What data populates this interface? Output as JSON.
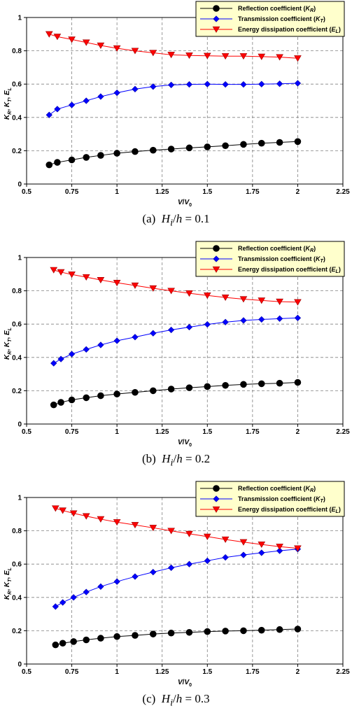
{
  "chart_data": [
    {
      "type": "line",
      "caption": {
        "label": "(a)",
        "var1": "H",
        "sub": "i",
        "var2": "h",
        "value": "0.1"
      },
      "xlabel": "V / V0",
      "ylabel": "KR, KT, EL",
      "xlim": [
        0.5,
        2.25
      ],
      "ylim": [
        0,
        1
      ],
      "xticks": [
        "0.5",
        "0.75",
        "1",
        "1.25",
        "1.5",
        "1.75",
        "2",
        "2.25"
      ],
      "yticks": [
        "0",
        "0.2",
        "0.4",
        "0.6",
        "0.8",
        "1"
      ],
      "grid": true,
      "legend_position": "top-right",
      "series": [
        {
          "name": "Reflection coefficient (KR)",
          "legend_main": "Reflection coefficient (",
          "legend_sym": "K",
          "legend_sub": "R",
          "color": "#000000",
          "marker": "circle",
          "x": [
            0.625,
            0.67,
            0.75,
            0.83,
            0.91,
            1.0,
            1.1,
            1.2,
            1.3,
            1.4,
            1.5,
            1.6,
            1.7,
            1.8,
            1.9,
            2.0
          ],
          "y": [
            0.115,
            0.13,
            0.145,
            0.16,
            0.172,
            0.185,
            0.195,
            0.203,
            0.21,
            0.217,
            0.223,
            0.23,
            0.238,
            0.245,
            0.25,
            0.255
          ]
        },
        {
          "name": "Transmission coefficient (KT)",
          "legend_main": "Transmission coefficient (",
          "legend_sym": "K",
          "legend_sub": "T",
          "color": "#0000ff",
          "marker": "diamond",
          "x": [
            0.625,
            0.67,
            0.75,
            0.83,
            0.91,
            1.0,
            1.1,
            1.2,
            1.3,
            1.4,
            1.5,
            1.6,
            1.7,
            1.8,
            1.9,
            2.0
          ],
          "y": [
            0.415,
            0.45,
            0.475,
            0.5,
            0.525,
            0.548,
            0.57,
            0.585,
            0.595,
            0.598,
            0.6,
            0.598,
            0.598,
            0.6,
            0.602,
            0.605
          ]
        },
        {
          "name": "Energy dissipation coefficient (EL)",
          "legend_main": "Energy dissipation coefficient (",
          "legend_sym": "E",
          "legend_sub": "L",
          "color": "#ff0000",
          "marker": "triangle-down",
          "x": [
            0.625,
            0.67,
            0.75,
            0.83,
            0.91,
            1.0,
            1.1,
            1.2,
            1.3,
            1.4,
            1.5,
            1.6,
            1.7,
            1.8,
            1.9,
            2.0
          ],
          "y": [
            0.9,
            0.885,
            0.868,
            0.85,
            0.832,
            0.815,
            0.8,
            0.788,
            0.776,
            0.772,
            0.77,
            0.768,
            0.768,
            0.765,
            0.762,
            0.755
          ]
        }
      ]
    },
    {
      "type": "line",
      "caption": {
        "label": "(b)",
        "var1": "H",
        "sub": "i",
        "var2": "h",
        "value": "0.2"
      },
      "xlabel": "V / V0",
      "ylabel": "KR, KT, EL",
      "xlim": [
        0.5,
        2.25
      ],
      "ylim": [
        0,
        1
      ],
      "xticks": [
        "0.5",
        "0.75",
        "1",
        "1.25",
        "1.5",
        "1.75",
        "2",
        "2.25"
      ],
      "yticks": [
        "0",
        "0.2",
        "0.4",
        "0.6",
        "0.8",
        "1"
      ],
      "grid": true,
      "legend_position": "top-right",
      "series": [
        {
          "name": "Reflection coefficient (KR)",
          "legend_main": "Reflection coefficient (",
          "legend_sym": "K",
          "legend_sub": "R",
          "color": "#000000",
          "marker": "circle",
          "x": [
            0.65,
            0.69,
            0.75,
            0.83,
            0.91,
            1.0,
            1.1,
            1.2,
            1.3,
            1.4,
            1.5,
            1.6,
            1.7,
            1.8,
            1.9,
            2.0
          ],
          "y": [
            0.115,
            0.13,
            0.145,
            0.158,
            0.17,
            0.18,
            0.19,
            0.2,
            0.21,
            0.218,
            0.225,
            0.232,
            0.238,
            0.242,
            0.245,
            0.25
          ]
        },
        {
          "name": "Transmission coefficient (KT)",
          "legend_main": "Transmission coefficient (",
          "legend_sym": "K",
          "legend_sub": "T",
          "color": "#0000ff",
          "marker": "diamond",
          "x": [
            0.65,
            0.69,
            0.75,
            0.83,
            0.91,
            1.0,
            1.1,
            1.2,
            1.3,
            1.4,
            1.5,
            1.6,
            1.7,
            1.8,
            1.9,
            2.0
          ],
          "y": [
            0.365,
            0.39,
            0.42,
            0.448,
            0.475,
            0.5,
            0.522,
            0.545,
            0.565,
            0.582,
            0.598,
            0.612,
            0.622,
            0.628,
            0.633,
            0.637
          ]
        },
        {
          "name": "Energy dissipation coefficient (EL)",
          "legend_main": "Energy dissipation coefficient (",
          "legend_sym": "E",
          "legend_sub": "L",
          "color": "#ff0000",
          "marker": "triangle-down",
          "x": [
            0.65,
            0.69,
            0.75,
            0.83,
            0.91,
            1.0,
            1.1,
            1.2,
            1.3,
            1.4,
            1.5,
            1.6,
            1.7,
            1.8,
            1.9,
            2.0
          ],
          "y": [
            0.925,
            0.912,
            0.898,
            0.882,
            0.865,
            0.848,
            0.832,
            0.815,
            0.8,
            0.785,
            0.772,
            0.76,
            0.75,
            0.742,
            0.735,
            0.732
          ]
        }
      ]
    },
    {
      "type": "line",
      "caption": {
        "label": "(c)",
        "var1": "H",
        "sub": "i",
        "var2": "h",
        "value": "0.3"
      },
      "xlabel": "V / V0",
      "ylabel": "KR, KT, EL",
      "xlim": [
        0.5,
        2.25
      ],
      "ylim": [
        0,
        1
      ],
      "xticks": [
        "0.5",
        "0.75",
        "1",
        "1.25",
        "1.5",
        "1.75",
        "2",
        "2.25"
      ],
      "yticks": [
        "0",
        "0.2",
        "0.4",
        "0.6",
        "0.8",
        "1"
      ],
      "grid": true,
      "legend_position": "top-right",
      "series": [
        {
          "name": "Reflection coefficient (KR)",
          "legend_main": "Reflection coefficient (",
          "legend_sym": "K",
          "legend_sub": "R",
          "color": "#000000",
          "marker": "circle",
          "x": [
            0.66,
            0.7,
            0.76,
            0.83,
            0.91,
            1.0,
            1.1,
            1.2,
            1.3,
            1.4,
            1.5,
            1.6,
            1.7,
            1.8,
            1.9,
            2.0
          ],
          "y": [
            0.115,
            0.125,
            0.135,
            0.145,
            0.155,
            0.165,
            0.172,
            0.18,
            0.186,
            0.19,
            0.195,
            0.198,
            0.2,
            0.203,
            0.207,
            0.21
          ]
        },
        {
          "name": "Transmission coefficient (KT)",
          "legend_main": "Transmission coefficient (",
          "legend_sym": "K",
          "legend_sub": "T",
          "color": "#0000ff",
          "marker": "diamond",
          "x": [
            0.66,
            0.7,
            0.76,
            0.83,
            0.91,
            1.0,
            1.1,
            1.2,
            1.3,
            1.4,
            1.5,
            1.6,
            1.7,
            1.8,
            1.9,
            2.0
          ],
          "y": [
            0.345,
            0.37,
            0.4,
            0.432,
            0.465,
            0.495,
            0.525,
            0.552,
            0.578,
            0.6,
            0.62,
            0.64,
            0.655,
            0.668,
            0.68,
            0.69
          ]
        },
        {
          "name": "Energy dissipation coefficient (EL)",
          "legend_main": "Energy dissipation coefficient (",
          "legend_sym": "E",
          "legend_sub": "L",
          "color": "#ff0000",
          "marker": "triangle-down",
          "x": [
            0.66,
            0.7,
            0.76,
            0.83,
            0.91,
            1.0,
            1.1,
            1.2,
            1.3,
            1.4,
            1.5,
            1.6,
            1.7,
            1.8,
            1.9,
            2.0
          ],
          "y": [
            0.935,
            0.922,
            0.905,
            0.888,
            0.87,
            0.852,
            0.835,
            0.818,
            0.8,
            0.782,
            0.765,
            0.748,
            0.732,
            0.718,
            0.705,
            0.695
          ]
        }
      ]
    }
  ]
}
